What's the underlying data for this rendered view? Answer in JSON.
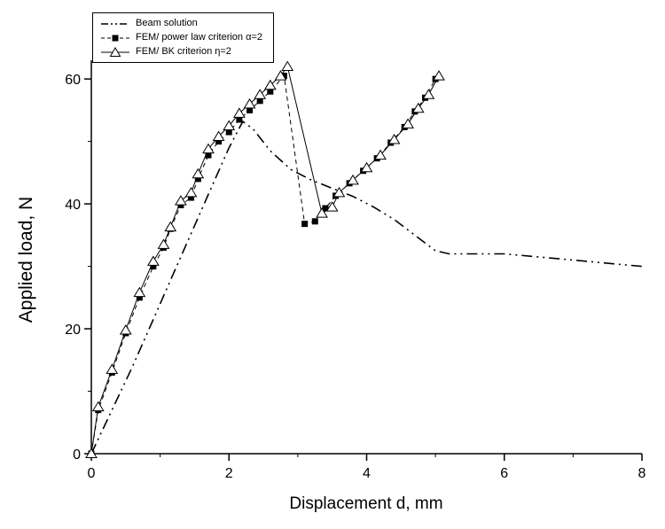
{
  "figure": {
    "background": "#ffffff",
    "ink_color": "#000000"
  },
  "chart_data": {
    "type": "line",
    "title": "",
    "xlabel": "Displacement d, mm",
    "ylabel": "Applied load, N",
    "xlim": [
      0,
      8
    ],
    "ylim": [
      0,
      63
    ],
    "xticks": [
      0,
      2,
      4,
      6,
      8
    ],
    "xticks_minor": [
      1,
      3,
      5,
      7
    ],
    "yticks": [
      0,
      20,
      40,
      60
    ],
    "yticks_minor": [
      10,
      30,
      50
    ],
    "grid": false,
    "legend_position": "top-left",
    "series": [
      {
        "name": "Beam solution",
        "line_style": "dash_dot_dot",
        "marker": "none",
        "color": "#000000",
        "points": [
          [
            0,
            0
          ],
          [
            0.3,
            7
          ],
          [
            0.6,
            14
          ],
          [
            0.9,
            21.5
          ],
          [
            1.2,
            29
          ],
          [
            1.5,
            36.5
          ],
          [
            1.8,
            44
          ],
          [
            2.0,
            49
          ],
          [
            2.2,
            53.2
          ],
          [
            2.35,
            52
          ],
          [
            2.6,
            48.5
          ],
          [
            2.9,
            45.5
          ],
          [
            3.2,
            43.8
          ],
          [
            3.5,
            42.5
          ],
          [
            3.8,
            41.2
          ],
          [
            4.1,
            39.5
          ],
          [
            4.4,
            37.5
          ],
          [
            4.7,
            35
          ],
          [
            5.0,
            32.5
          ],
          [
            5.2,
            32
          ],
          [
            5.6,
            32
          ],
          [
            6.0,
            32
          ],
          [
            6.4,
            31.6
          ],
          [
            6.8,
            31.2
          ],
          [
            7.2,
            30.8
          ],
          [
            7.6,
            30.4
          ],
          [
            8.0,
            30
          ]
        ]
      },
      {
        "name": "FEM/ power law criterion α=2",
        "line_style": "dash",
        "marker": "filled_square",
        "color": "#000000",
        "points": [
          [
            0,
            0
          ],
          [
            0.1,
            7
          ],
          [
            0.3,
            13
          ],
          [
            0.5,
            19.3
          ],
          [
            0.7,
            25
          ],
          [
            0.9,
            30
          ],
          [
            1.05,
            33
          ],
          [
            1.15,
            36
          ],
          [
            1.3,
            39.8
          ],
          [
            1.45,
            41
          ],
          [
            1.55,
            44
          ],
          [
            1.7,
            47.8
          ],
          [
            1.85,
            50
          ],
          [
            2.0,
            51.5
          ],
          [
            2.15,
            53.5
          ],
          [
            2.3,
            55
          ],
          [
            2.45,
            56.5
          ],
          [
            2.6,
            58
          ],
          [
            2.8,
            60.5
          ],
          [
            3.1,
            36.8
          ],
          [
            3.25,
            37.2
          ],
          [
            3.4,
            39.3
          ],
          [
            3.55,
            41.3
          ],
          [
            3.75,
            43.3
          ],
          [
            3.95,
            45.3
          ],
          [
            4.15,
            47.3
          ],
          [
            4.35,
            49.8
          ],
          [
            4.55,
            52.3
          ],
          [
            4.7,
            54.8
          ],
          [
            4.85,
            57
          ],
          [
            5.0,
            60
          ]
        ]
      },
      {
        "name": "FEM/ BK criterion η=2",
        "line_style": "solid",
        "marker": "open_triangle",
        "color": "#000000",
        "points": [
          [
            0,
            0
          ],
          [
            0.1,
            7.5
          ],
          [
            0.3,
            13.5
          ],
          [
            0.5,
            19.8
          ],
          [
            0.7,
            25.8
          ],
          [
            0.9,
            30.8
          ],
          [
            1.05,
            33.5
          ],
          [
            1.15,
            36.3
          ],
          [
            1.3,
            40.5
          ],
          [
            1.45,
            41.8
          ],
          [
            1.55,
            44.8
          ],
          [
            1.7,
            48.8
          ],
          [
            1.85,
            50.8
          ],
          [
            2.0,
            52.5
          ],
          [
            2.15,
            54.5
          ],
          [
            2.3,
            56
          ],
          [
            2.45,
            57.5
          ],
          [
            2.6,
            59
          ],
          [
            2.75,
            60.5
          ],
          [
            2.85,
            62
          ],
          [
            3.35,
            38.5
          ],
          [
            3.5,
            39.5
          ],
          [
            3.6,
            41.8
          ],
          [
            3.8,
            43.8
          ],
          [
            4.0,
            45.8
          ],
          [
            4.2,
            47.8
          ],
          [
            4.4,
            50.3
          ],
          [
            4.6,
            52.8
          ],
          [
            4.75,
            55.3
          ],
          [
            4.9,
            57.5
          ],
          [
            5.05,
            60.5
          ]
        ]
      }
    ]
  }
}
